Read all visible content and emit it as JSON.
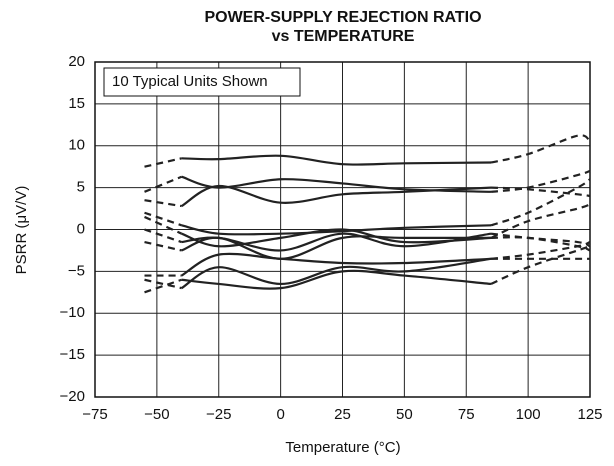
{
  "chart_data": {
    "type": "line",
    "title": "POWER-SUPPLY REJECTION RATIO",
    "subtitle": "vs TEMPERATURE",
    "x_label": "Temperature (°C)",
    "y_label": "PSRR (μV/V)",
    "annotation": "10 Typical Units Shown",
    "xlim": [
      -75,
      125
    ],
    "ylim": [
      -20,
      20
    ],
    "xticks": [
      {
        "value": -75,
        "label": "−75"
      },
      {
        "value": -50,
        "label": "−50"
      },
      {
        "value": -25,
        "label": "−25"
      },
      0,
      25,
      50,
      75,
      100,
      125
    ],
    "yticks": [
      {
        "value": -20,
        "label": "−20"
      },
      {
        "value": -15,
        "label": "−15"
      },
      {
        "value": -10,
        "label": "−10"
      },
      {
        "value": -5,
        "label": "−5"
      },
      0,
      5,
      10,
      15,
      20
    ],
    "grid": true,
    "solid_xlim": [
      -40,
      85
    ],
    "color": "#222222",
    "x": [
      -55,
      -40,
      -25,
      0,
      25,
      50,
      85,
      100,
      120,
      125
    ],
    "series": [
      {
        "values": [
          7.5,
          8.5,
          8.4,
          8.8,
          7.8,
          7.9,
          8.0,
          9.0,
          11.2,
          10.5
        ]
      },
      {
        "values": [
          4.5,
          6.3,
          5.0,
          6.0,
          5.5,
          4.8,
          4.5,
          5.0,
          6.5,
          7.0
        ]
      },
      {
        "values": [
          3.5,
          2.8,
          5.2,
          3.2,
          4.2,
          4.5,
          5.0,
          4.8,
          4.2,
          4.0
        ]
      },
      {
        "values": [
          2.0,
          0.5,
          -0.5,
          -0.5,
          -0.2,
          0.2,
          0.5,
          2.0,
          5.0,
          6.0
        ]
      },
      {
        "values": [
          1.5,
          -0.5,
          -2.0,
          -1.0,
          0.0,
          -1.5,
          -1.0,
          1.0,
          2.5,
          3.0
        ]
      },
      {
        "values": [
          0.0,
          -1.5,
          -1.0,
          -2.5,
          -0.5,
          -2.0,
          -0.5,
          -1.0,
          -1.5,
          -2.0
        ]
      },
      {
        "values": [
          -1.5,
          -2.5,
          -1.0,
          -3.5,
          -1.0,
          -1.0,
          -1.0,
          -1.0,
          -2.0,
          -2.5
        ]
      },
      {
        "values": [
          -5.5,
          -5.5,
          -3.0,
          -3.5,
          -4.0,
          -4.0,
          -3.5,
          -3.0,
          -2.0,
          -1.5
        ]
      },
      {
        "values": [
          -6.0,
          -7.0,
          -4.5,
          -6.5,
          -4.5,
          -5.0,
          -3.5,
          -3.5,
          -3.5,
          -3.5
        ]
      },
      {
        "values": [
          -7.5,
          -6.0,
          -6.5,
          -7.0,
          -5.0,
          -5.5,
          -6.5,
          -4.5,
          -2.5,
          -2.0
        ]
      }
    ]
  }
}
